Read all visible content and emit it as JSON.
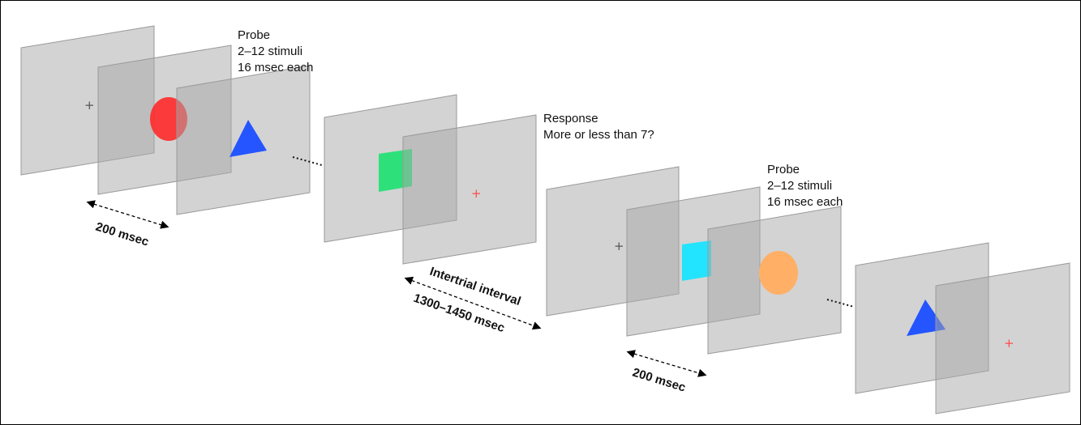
{
  "labels": {
    "probe1": [
      "Probe",
      "2–12 stimuli",
      "16 msec each"
    ],
    "response": [
      "Response",
      "More or less than 7?"
    ],
    "probe2": [
      "Probe",
      "2–12 stimuli",
      "16 msec each"
    ],
    "intertrial": "Intertrial interval",
    "intertrial_duration": "1300–1450 msec",
    "duration1": "200 msec",
    "duration2": "200 msec"
  },
  "colors": {
    "panel": "#a8a8a8",
    "red_circle": "#ff2a2a",
    "blue_triangle": "#2455ff",
    "green_square": "#2ee07a",
    "cyan_square": "#23e4ff",
    "orange_circle": "#ffb066",
    "fixation_dark": "#555555",
    "fixation_red": "#ff4a4a"
  },
  "icons": [
    "fixation-cross",
    "red-circle",
    "blue-triangle",
    "green-square",
    "cyan-square",
    "orange-circle"
  ]
}
